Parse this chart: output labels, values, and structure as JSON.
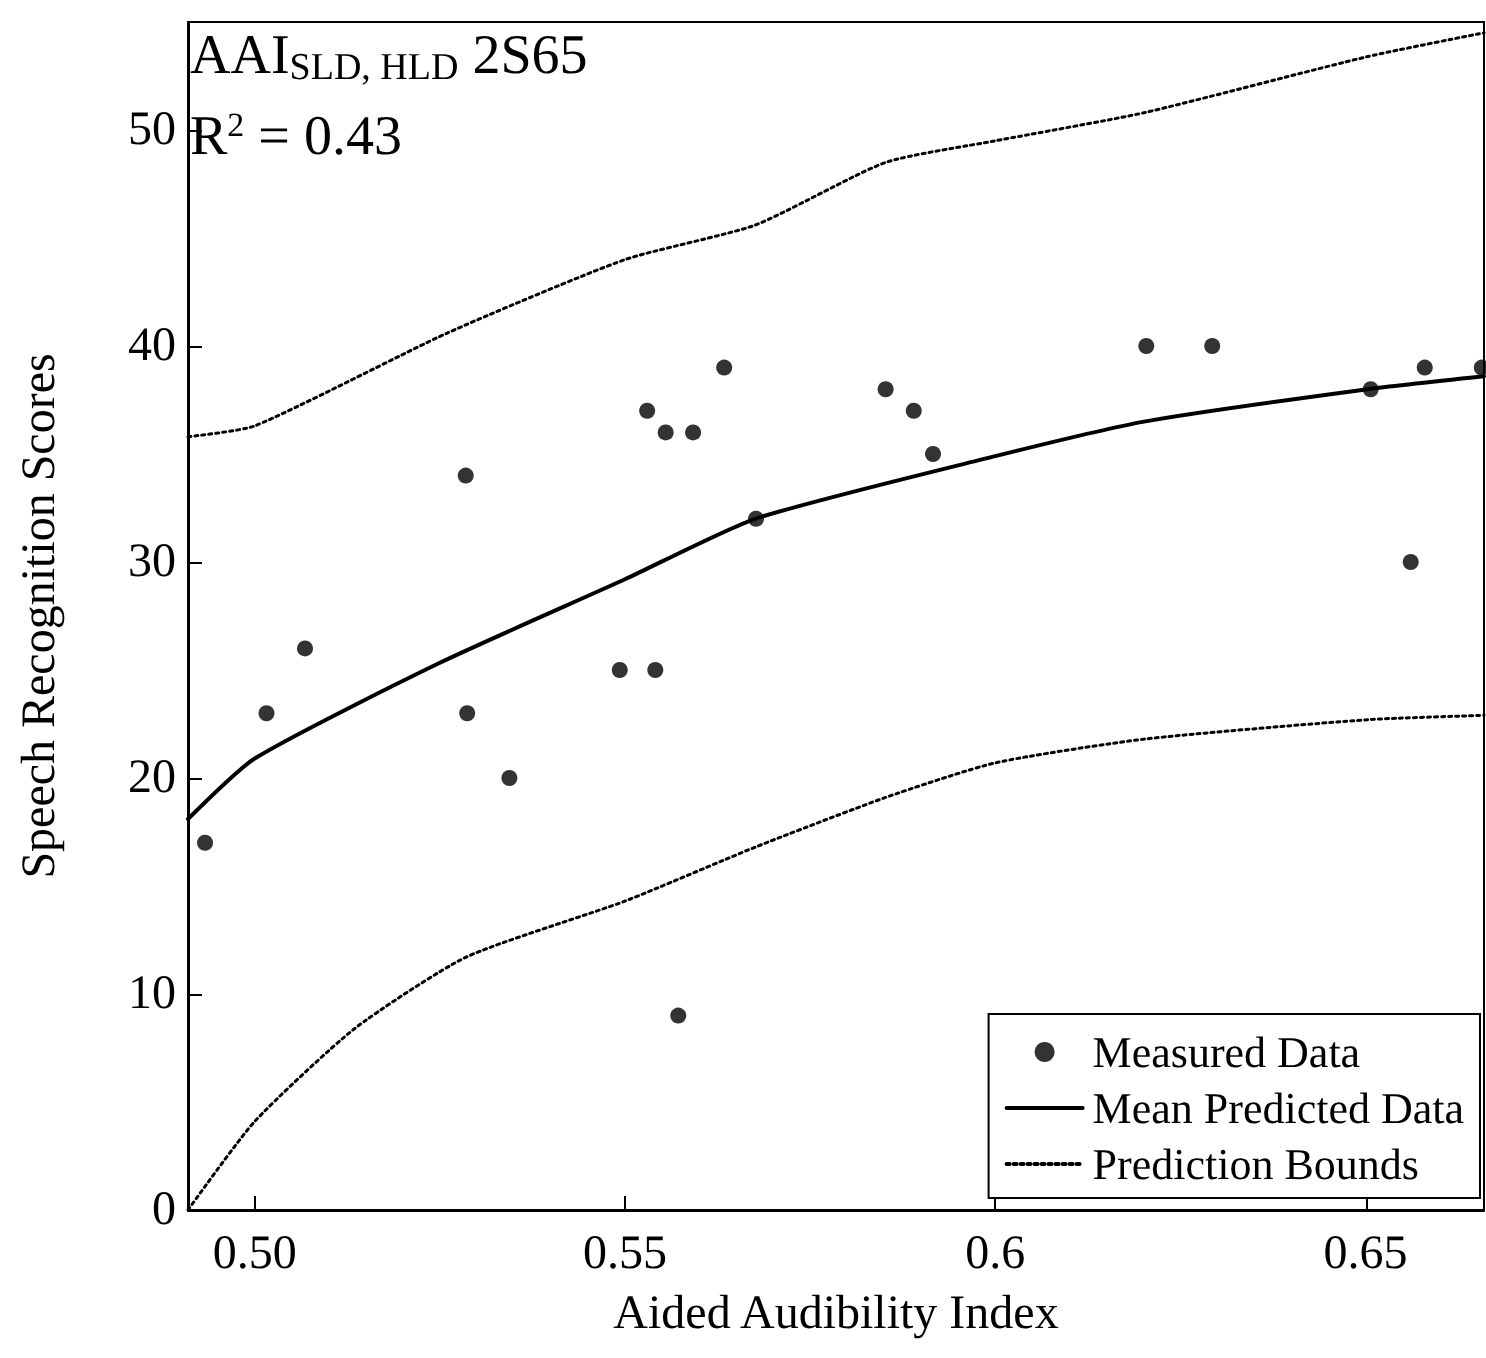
{
  "chart_data": {
    "type": "scatter",
    "xlabel": "Aided Audibility Index",
    "ylabel": "Speech Recognition Scores",
    "annotations": [
      "AAI$_{SLD, HLD}$ 2S65",
      "R$^{2}$ = 0.43"
    ],
    "xlim": [
      0.491,
      0.666
    ],
    "xticks": [
      {
        "value": 0.5,
        "label": "0.50"
      },
      0.55,
      0.6,
      0.65
    ],
    "ylim": [
      0,
      55
    ],
    "yticks": [
      0,
      10,
      20,
      30,
      40,
      50
    ],
    "grid": false,
    "legend": "bottom right",
    "series": [
      {
        "name": "Measured Data",
        "type": "scatter",
        "marker": "circle",
        "color": "#000000",
        "x": [
          0.4933,
          0.5016,
          0.5068,
          0.5285,
          0.5287,
          0.5344,
          0.5493,
          0.5541,
          0.553,
          0.5555,
          0.5592,
          0.5634,
          0.5677,
          0.5572,
          0.5852,
          0.589,
          0.5916,
          0.6204,
          0.6293,
          0.6507,
          0.6561,
          0.658,
          0.6657
        ],
        "values": [
          17,
          23,
          26,
          34,
          23,
          20,
          25,
          25,
          37,
          36,
          36,
          39,
          32,
          9,
          38,
          37,
          35,
          40,
          40,
          38,
          30,
          39,
          39
        ]
      },
      {
        "name": "Mean Predicted Data",
        "type": "line",
        "marker": "none",
        "line_style": "solid",
        "color": "#000000",
        "x": [
          0.491,
          0.5,
          0.5248,
          0.55,
          0.5676,
          0.6,
          0.6201,
          0.6503,
          0.666
        ],
        "values": [
          18.1,
          20.9,
          25.3,
          29.2,
          32,
          34.9,
          36.5,
          38,
          38.6
        ]
      },
      {
        "name": "Prediction Bounds",
        "type": "line",
        "marker": "none",
        "line_style": "dotted",
        "color": "#000000",
        "x": [
          0.491,
          0.5,
          0.526,
          0.55,
          0.5676,
          0.5852,
          0.6,
          0.6201,
          0.6503,
          0.666
        ],
        "values": [
          35.8,
          36.3,
          40.6,
          44,
          45.6,
          48.5,
          49.5,
          50.8,
          53.4,
          54.5
        ]
      },
      {
        "type": "line",
        "marker": "none",
        "line_style": "dotted",
        "color": "#000000",
        "x": [
          0.491,
          0.5,
          0.5135,
          0.5285,
          0.55,
          0.5676,
          0.5852,
          0.6,
          0.6201,
          0.6503,
          0.666
        ],
        "values": [
          0,
          4.1,
          8.4,
          11.7,
          14.3,
          16.8,
          19.1,
          20.7,
          21.8,
          22.7,
          22.9
        ]
      }
    ]
  }
}
